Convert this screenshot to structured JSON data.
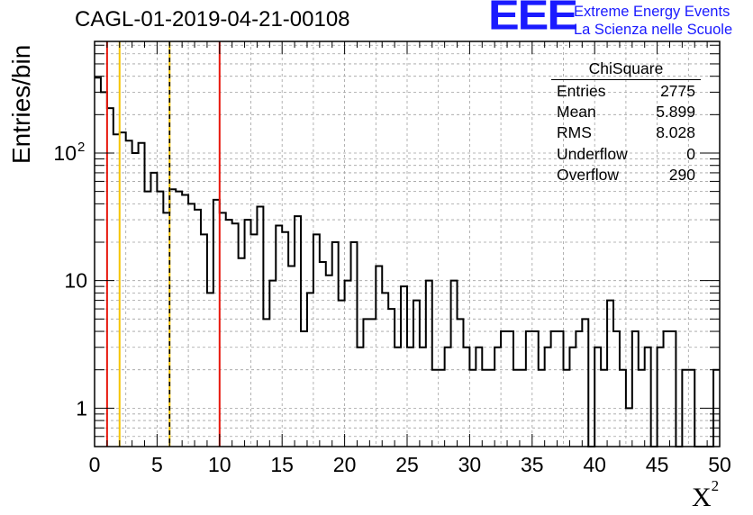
{
  "title": "CAGL-01-2019-04-21-00108",
  "logo": {
    "letters": "EEE",
    "line1": "Extreme Energy Events",
    "line2": "La Scienza nelle Scuole",
    "color": "#1a1aff"
  },
  "stats": {
    "title": "ChiSquare",
    "rows": [
      {
        "label": "Entries",
        "value": "2775"
      },
      {
        "label": "Mean",
        "value": "5.899"
      },
      {
        "label": "RMS",
        "value": "8.028"
      },
      {
        "label": "Underflow",
        "value": "0"
      },
      {
        "label": "Overflow",
        "value": "290"
      }
    ]
  },
  "chart_data": {
    "type": "histogram",
    "title": "CAGL-01-2019-04-21-00108",
    "xlabel": "X",
    "xlabel_superscript": "2",
    "ylabel": "Entries/bin",
    "xlim": [
      0,
      50
    ],
    "ylim": [
      0.5,
      750
    ],
    "yscale": "log",
    "grid": true,
    "bin_width": 0.5,
    "bin_start": 0,
    "x_ticks": [
      "0",
      "5",
      "10",
      "15",
      "20",
      "25",
      "30",
      "35",
      "40",
      "45",
      "50"
    ],
    "y_ticks": [
      {
        "value": 1,
        "base": "1",
        "exp": ""
      },
      {
        "value": 10,
        "base": "10",
        "exp": ""
      },
      {
        "value": 100,
        "base": "10",
        "exp": "2"
      }
    ],
    "values": [
      390,
      300,
      225,
      140,
      145,
      125,
      100,
      120,
      50,
      70,
      50,
      34,
      52,
      50,
      47,
      40,
      36,
      23,
      8,
      43,
      34,
      30,
      28,
      15,
      30,
      23,
      38,
      5,
      10,
      27,
      24,
      13,
      32,
      4,
      8,
      23,
      14,
      11,
      20,
      7,
      10,
      20,
      3,
      5,
      5,
      13,
      8,
      6,
      3,
      9,
      3,
      7,
      3,
      10,
      2,
      2,
      3,
      10,
      5,
      3,
      2,
      3,
      2,
      2,
      3,
      4,
      4,
      2,
      2,
      4,
      4,
      2,
      3,
      4,
      4,
      2,
      3,
      4,
      5,
      0,
      3,
      2,
      7,
      4,
      2,
      1,
      4,
      2,
      3,
      0,
      3,
      4,
      4,
      0,
      2,
      2,
      0,
      0,
      0,
      2
    ],
    "overlay_lines": [
      {
        "x": 1,
        "color": "#e8170c",
        "style": "solid"
      },
      {
        "x": 2,
        "color": "#f5c400",
        "style": "solid"
      },
      {
        "x": 6,
        "color": "#f5c400",
        "style": "solid"
      },
      {
        "x": 6,
        "color": "#000000",
        "style": "dashed"
      },
      {
        "x": 10,
        "color": "#e8170c",
        "style": "solid"
      }
    ]
  }
}
